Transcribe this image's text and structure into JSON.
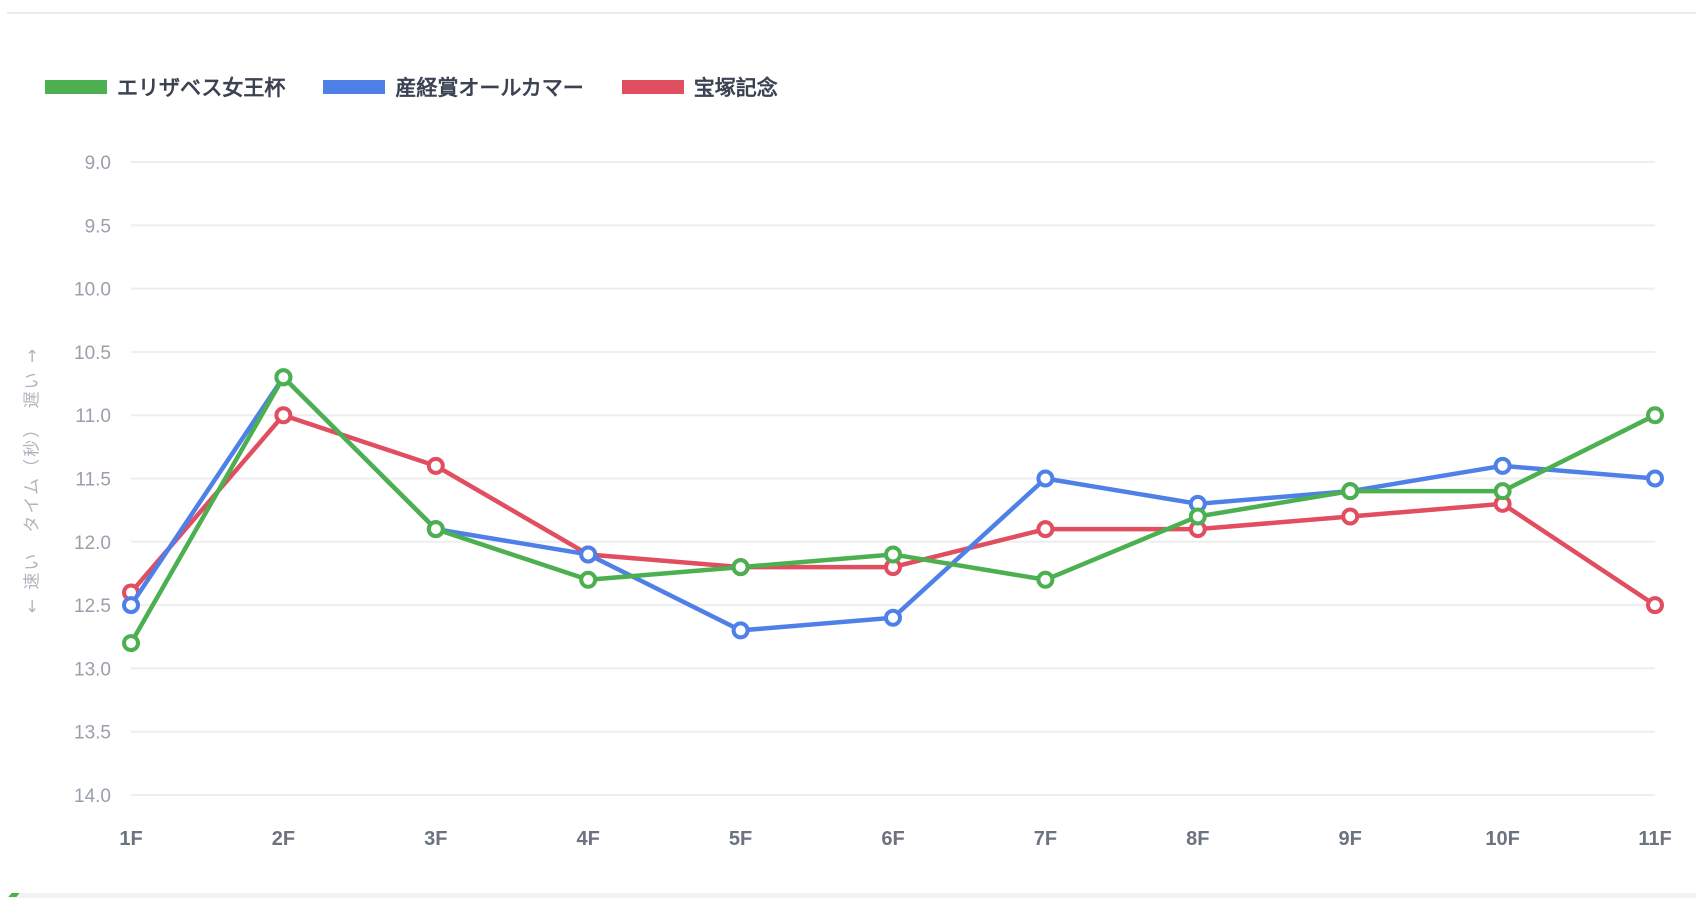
{
  "legend": [
    {
      "label": "エリザベス女王杯",
      "color": "#4caf50"
    },
    {
      "label": "産経賞オールカマー",
      "color": "#4f80e8"
    },
    {
      "label": "宝塚記念",
      "color": "#e04e5f"
    }
  ],
  "axis": {
    "ylabel": "← 速い　タイム（秒）　遅い →"
  },
  "chart_data": {
    "type": "line",
    "title": "",
    "xlabel": "",
    "ylabel": "← 速い　タイム（秒）　遅い →",
    "categories": [
      "1F",
      "2F",
      "3F",
      "4F",
      "5F",
      "6F",
      "7F",
      "8F",
      "9F",
      "10F",
      "11F"
    ],
    "y_ticks": [
      "9.0",
      "9.5",
      "10.0",
      "10.5",
      "11.0",
      "11.5",
      "12.0",
      "12.5",
      "13.0",
      "13.5",
      "14.0"
    ],
    "ylim": [
      9.0,
      14.0
    ],
    "y_inverted": true,
    "grid": true,
    "legend_position": "top-left",
    "series": [
      {
        "name": "エリザベス女王杯",
        "color": "#4caf50",
        "values": [
          12.8,
          10.7,
          11.9,
          12.3,
          12.2,
          12.1,
          12.3,
          11.8,
          11.6,
          11.6,
          11.0
        ]
      },
      {
        "name": "産経賞オールカマー",
        "color": "#4f80e8",
        "values": [
          12.5,
          10.7,
          11.9,
          12.1,
          12.7,
          12.6,
          11.5,
          11.7,
          11.6,
          11.4,
          11.5
        ]
      },
      {
        "name": "宝塚記念",
        "color": "#e04e5f",
        "values": [
          12.4,
          11.0,
          11.4,
          12.1,
          12.2,
          12.2,
          11.9,
          11.9,
          11.8,
          11.7,
          12.5
        ]
      }
    ]
  }
}
